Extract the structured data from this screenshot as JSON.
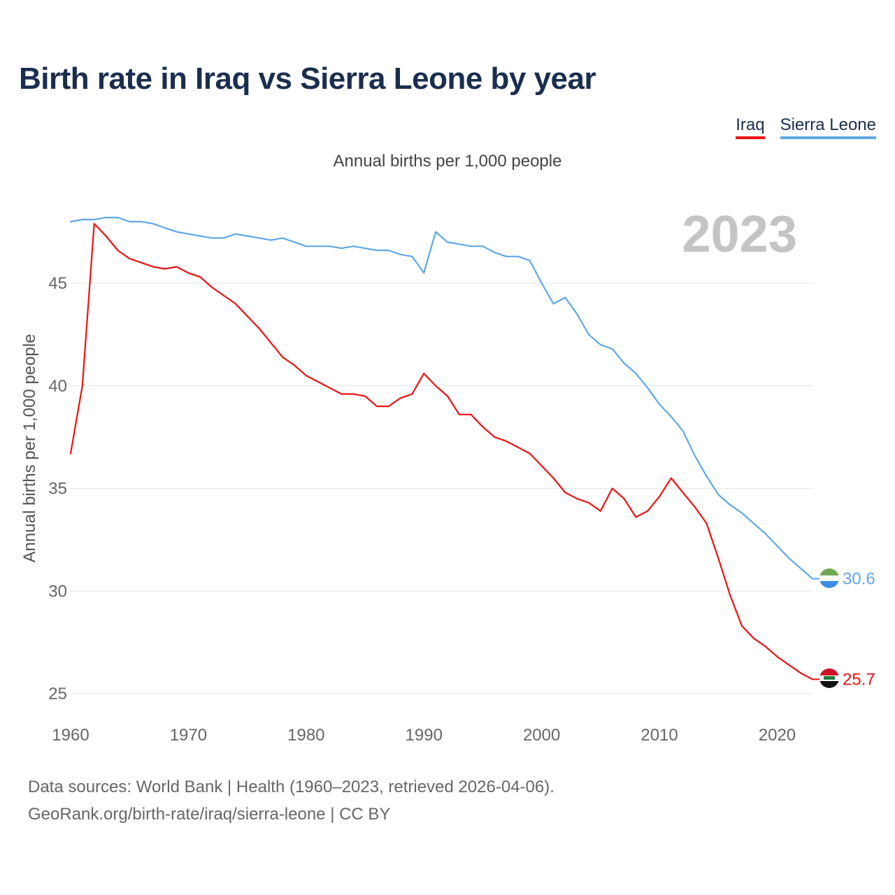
{
  "title": "Birth rate in Iraq vs Sierra Leone by year",
  "subtitle": "Annual births per 1,000 people",
  "legend": [
    {
      "label": "Iraq",
      "color": "#ee1111"
    },
    {
      "label": "Sierra Leone",
      "color": "#5ea8e8"
    }
  ],
  "year_display": "2023",
  "source": {
    "line1": "Data sources: World Bank | Health (1960–2023, retrieved 2026-04-06).",
    "line2": "GeoRank.org/birth-rate/iraq/sierra-leone | CC BY"
  },
  "chart_data": {
    "type": "line",
    "title": "Birth rate in Iraq vs Sierra Leone by year",
    "xlabel": "",
    "ylabel": "Annual births per 1,000 people",
    "xlim": [
      1960,
      2023
    ],
    "ylim": [
      25,
      48.5
    ],
    "xticks": [
      1960,
      1970,
      1980,
      1990,
      2000,
      2010,
      2020
    ],
    "yticks": [
      25,
      30,
      35,
      40,
      45
    ],
    "grid": true,
    "x": [
      1960,
      1961,
      1962,
      1963,
      1964,
      1965,
      1966,
      1967,
      1968,
      1969,
      1970,
      1971,
      1972,
      1973,
      1974,
      1975,
      1976,
      1977,
      1978,
      1979,
      1980,
      1981,
      1982,
      1983,
      1984,
      1985,
      1986,
      1987,
      1988,
      1989,
      1990,
      1991,
      1992,
      1993,
      1994,
      1995,
      1996,
      1997,
      1998,
      1999,
      2000,
      2001,
      2002,
      2003,
      2004,
      2005,
      2006,
      2007,
      2008,
      2009,
      2010,
      2011,
      2012,
      2013,
      2014,
      2015,
      2016,
      2017,
      2018,
      2019,
      2020,
      2021,
      2022,
      2023
    ],
    "series": [
      {
        "name": "Iraq",
        "color": "#ee1111",
        "end_label": "25.7",
        "values": [
          36.7,
          40.0,
          47.9,
          47.3,
          46.6,
          46.2,
          46.0,
          45.8,
          45.7,
          45.8,
          45.5,
          45.3,
          44.8,
          44.4,
          44.0,
          43.4,
          42.8,
          42.1,
          41.4,
          41.0,
          40.5,
          40.2,
          39.9,
          39.6,
          39.6,
          39.5,
          39.0,
          39.0,
          39.4,
          39.6,
          40.6,
          40.0,
          39.5,
          38.6,
          38.6,
          38.0,
          37.5,
          37.3,
          37.0,
          36.7,
          36.1,
          35.5,
          34.8,
          34.5,
          34.3,
          33.9,
          35.0,
          34.5,
          33.6,
          33.9,
          34.6,
          35.5,
          34.8,
          34.1,
          33.3,
          31.6,
          29.8,
          28.3,
          27.7,
          27.3,
          26.8,
          26.4,
          26.0,
          25.7
        ]
      },
      {
        "name": "Sierra Leone",
        "color": "#5ea8e8",
        "end_label": "30.6",
        "values": [
          48.0,
          48.1,
          48.1,
          48.2,
          48.2,
          48.0,
          48.0,
          47.9,
          47.7,
          47.5,
          47.4,
          47.3,
          47.2,
          47.2,
          47.4,
          47.3,
          47.2,
          47.1,
          47.2,
          47.0,
          46.8,
          46.8,
          46.8,
          46.7,
          46.8,
          46.7,
          46.6,
          46.6,
          46.4,
          46.3,
          45.5,
          47.5,
          47.0,
          46.9,
          46.8,
          46.8,
          46.5,
          46.3,
          46.3,
          46.1,
          45.0,
          44.0,
          44.3,
          43.5,
          42.5,
          42.0,
          41.8,
          41.1,
          40.6,
          39.9,
          39.1,
          38.5,
          37.8,
          36.6,
          35.6,
          34.7,
          34.2,
          33.8,
          33.3,
          32.8,
          32.2,
          31.6,
          31.1,
          30.6
        ]
      }
    ]
  }
}
